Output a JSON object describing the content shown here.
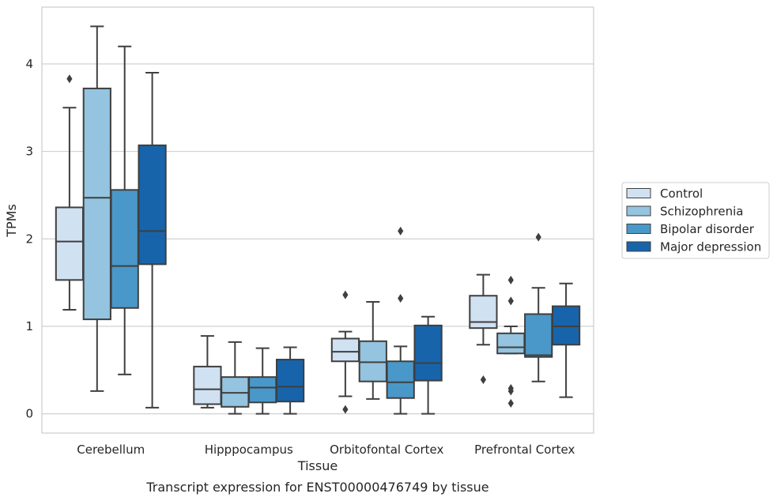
{
  "chart_data": {
    "type": "box",
    "title": "",
    "caption": "Transcript expression for ENST00000476749 by tissue",
    "xlabel": "Tissue",
    "ylabel": "TPMs",
    "ylim": [
      -0.22,
      4.65
    ],
    "yticks": [
      0,
      1,
      2,
      3,
      4
    ],
    "grid": "horizontal",
    "legend_position": "right",
    "categories": [
      "Cerebellum",
      "Hipppocampus",
      "Orbitofontal Cortex",
      "Prefrontal Cortex"
    ],
    "series": [
      {
        "name": "Control",
        "color": "#d0e1f2",
        "boxes": [
          {
            "whislo": 1.19,
            "q1": 1.53,
            "med": 1.97,
            "q3": 2.36,
            "whishi": 3.5,
            "fliers": [
              3.83
            ]
          },
          {
            "whislo": 0.07,
            "q1": 0.11,
            "med": 0.28,
            "q3": 0.54,
            "whishi": 0.89,
            "fliers": []
          },
          {
            "whislo": 0.2,
            "q1": 0.6,
            "med": 0.71,
            "q3": 0.86,
            "whishi": 0.94,
            "fliers": [
              1.36,
              0.05
            ]
          },
          {
            "whislo": 0.79,
            "q1": 0.98,
            "med": 1.05,
            "q3": 1.35,
            "whishi": 1.59,
            "fliers": [
              0.39
            ]
          }
        ]
      },
      {
        "name": "Schizophrenia",
        "color": "#94c4df",
        "boxes": [
          {
            "whislo": 0.26,
            "q1": 1.08,
            "med": 2.47,
            "q3": 3.72,
            "whishi": 4.43,
            "fliers": []
          },
          {
            "whislo": 0.0,
            "q1": 0.08,
            "med": 0.24,
            "q3": 0.42,
            "whishi": 0.82,
            "fliers": []
          },
          {
            "whislo": 0.17,
            "q1": 0.37,
            "med": 0.59,
            "q3": 0.83,
            "whishi": 1.28,
            "fliers": []
          },
          {
            "whislo": 0.69,
            "q1": 0.69,
            "med": 0.76,
            "q3": 0.92,
            "whishi": 1.0,
            "fliers": [
              1.53,
              1.29,
              0.29,
              0.26,
              0.12
            ]
          }
        ]
      },
      {
        "name": "Bipolar disorder",
        "color": "#4a98c9",
        "boxes": [
          {
            "whislo": 0.45,
            "q1": 1.21,
            "med": 1.69,
            "q3": 2.56,
            "whishi": 4.2,
            "fliers": []
          },
          {
            "whislo": 0.0,
            "q1": 0.13,
            "med": 0.3,
            "q3": 0.42,
            "whishi": 0.75,
            "fliers": []
          },
          {
            "whislo": 0.0,
            "q1": 0.18,
            "med": 0.36,
            "q3": 0.6,
            "whishi": 0.77,
            "fliers": [
              2.09,
              1.32
            ]
          },
          {
            "whislo": 0.37,
            "q1": 0.65,
            "med": 0.67,
            "q3": 1.14,
            "whishi": 1.44,
            "fliers": [
              2.02
            ]
          }
        ]
      },
      {
        "name": "Major depression",
        "color": "#1764ab",
        "boxes": [
          {
            "whislo": 0.07,
            "q1": 1.71,
            "med": 2.09,
            "q3": 3.07,
            "whishi": 3.9,
            "fliers": []
          },
          {
            "whislo": 0.0,
            "q1": 0.14,
            "med": 0.31,
            "q3": 0.62,
            "whishi": 0.76,
            "fliers": []
          },
          {
            "whislo": 0.0,
            "q1": 0.38,
            "med": 0.58,
            "q3": 1.01,
            "whishi": 1.11,
            "fliers": []
          },
          {
            "whislo": 0.19,
            "q1": 0.79,
            "med": 1.0,
            "q3": 1.23,
            "whishi": 1.49,
            "fliers": []
          }
        ]
      }
    ]
  }
}
